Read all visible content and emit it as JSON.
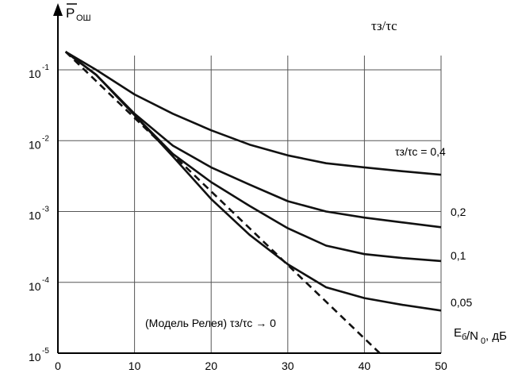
{
  "chart_data": {
    "type": "line",
    "title": "τз/τс",
    "ylabel_bar": "P",
    "ylabel_sub": "ОШ",
    "xlabel_main": "E",
    "xlabel_sub1": "б",
    "xlabel_mid": "/N",
    "xlabel_sub2": "0",
    "xlabel_unit": ", дБ",
    "y_scale": "log",
    "xlim": [
      0,
      50
    ],
    "ylim": [
      1e-05,
      1
    ],
    "x_ticks": [
      "0",
      "10",
      "20",
      "30",
      "40",
      "50"
    ],
    "y_ticks": [
      {
        "value": 0.1,
        "base": "10",
        "exp": "-1"
      },
      {
        "value": 0.01,
        "base": "10",
        "exp": "-2"
      },
      {
        "value": 0.001,
        "base": "10",
        "exp": "-3"
      },
      {
        "value": 0.0001,
        "base": "10",
        "exp": "-4"
      },
      {
        "value": 1e-05,
        "base": "10",
        "exp": "-5"
      }
    ],
    "grid": true,
    "series": [
      {
        "name": "τз/τс = 0,4",
        "label": "τз/τс = 0,4",
        "style": "solid",
        "x": [
          1,
          5,
          10,
          15,
          20,
          25,
          30,
          35,
          40,
          45,
          50
        ],
        "y": [
          0.18,
          0.1,
          0.045,
          0.024,
          0.014,
          0.0088,
          0.0062,
          0.0048,
          0.0042,
          0.0037,
          0.0033
        ]
      },
      {
        "name": "0,2",
        "label": "0,2",
        "style": "solid",
        "x": [
          1,
          5,
          10,
          15,
          20,
          25,
          30,
          35,
          40,
          45,
          50
        ],
        "y": [
          0.18,
          0.085,
          0.024,
          0.0085,
          0.0042,
          0.0024,
          0.0014,
          0.001,
          0.00082,
          0.0007,
          0.0006
        ]
      },
      {
        "name": "0,1",
        "label": "0,1",
        "style": "solid",
        "x": [
          1,
          5,
          10,
          15,
          20,
          25,
          30,
          35,
          40,
          45,
          50
        ],
        "y": [
          0.18,
          0.085,
          0.023,
          0.0065,
          0.0026,
          0.0012,
          0.00058,
          0.00033,
          0.00025,
          0.00022,
          0.0002
        ]
      },
      {
        "name": "0,05",
        "label": "0,05",
        "style": "solid",
        "x": [
          1,
          5,
          10,
          15,
          20,
          25,
          30,
          35,
          40,
          45,
          50
        ],
        "y": [
          0.18,
          0.085,
          0.023,
          0.006,
          0.0015,
          0.00047,
          0.00018,
          8.5e-05,
          6e-05,
          4.8e-05,
          4e-05
        ]
      },
      {
        "name": "(Модель Релея) τз/τс → 0",
        "label": "(Модель Релея) τз/τс → 0",
        "style": "dashed",
        "x": [
          1,
          42
        ],
        "y": [
          0.18,
          1e-05
        ]
      }
    ]
  }
}
